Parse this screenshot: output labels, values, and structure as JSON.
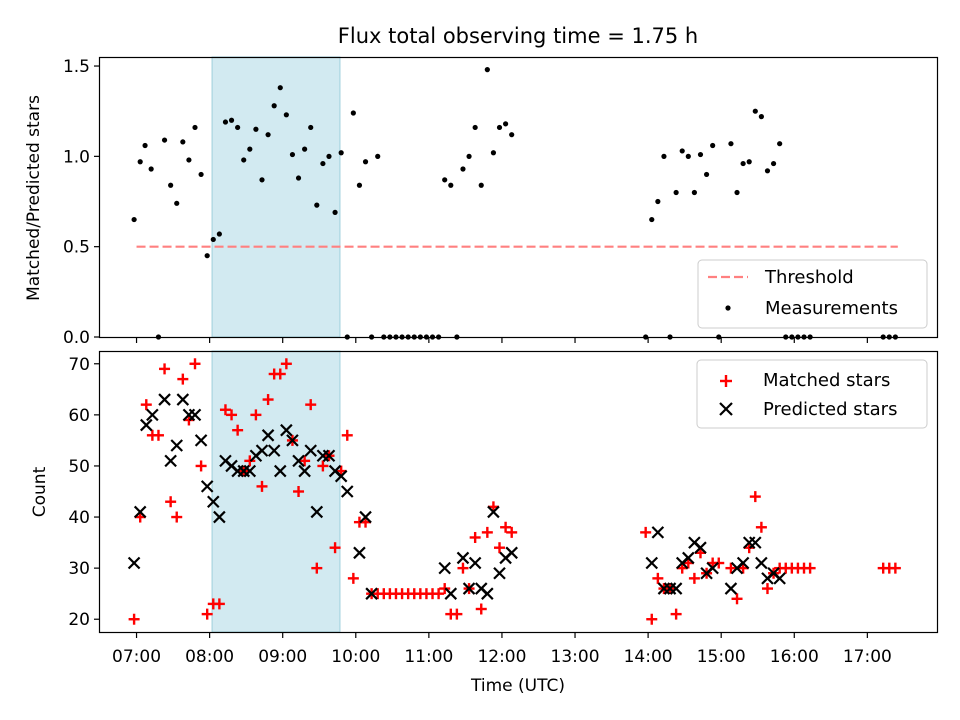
{
  "chart_data": [
    {
      "type": "scatter",
      "title": "Flux total observing time = 1.75 h",
      "ylabel": "Matched/Predicted stars",
      "xlim": [
        "06:30",
        "17:58"
      ],
      "ylim": [
        0,
        1.55
      ],
      "yticks": [
        0.0,
        0.5,
        1.0,
        1.5
      ],
      "ytick_labels": [
        "0.0",
        "0.5",
        "1.0",
        "1.5"
      ],
      "shaded_span": [
        "08:02",
        "09:47"
      ],
      "threshold": {
        "name": "Threshold",
        "value": 0.5,
        "x_start": "07:00",
        "x_end": "17:25"
      },
      "legend": {
        "position": "lower-right",
        "entries": [
          "Threshold",
          "Measurements"
        ]
      },
      "series": [
        {
          "name": "Measurements",
          "points": [
            [
              "06:58",
              0.65
            ],
            [
              "07:03",
              0.97
            ],
            [
              "07:07",
              1.06
            ],
            [
              "07:12",
              0.93
            ],
            [
              "07:18",
              0
            ],
            [
              "07:23",
              1.09
            ],
            [
              "07:28",
              0.84
            ],
            [
              "07:33",
              0.74
            ],
            [
              "07:38",
              1.08
            ],
            [
              "07:43",
              0.98
            ],
            [
              "07:48",
              1.16
            ],
            [
              "07:53",
              0.9
            ],
            [
              "07:58",
              0.45
            ],
            [
              "08:03",
              0.54
            ],
            [
              "08:08",
              0.57
            ],
            [
              "08:13",
              1.19
            ],
            [
              "08:18",
              1.2
            ],
            [
              "08:23",
              1.16
            ],
            [
              "08:28",
              0.98
            ],
            [
              "08:33",
              1.04
            ],
            [
              "08:38",
              1.15
            ],
            [
              "08:43",
              0.87
            ],
            [
              "08:48",
              1.12
            ],
            [
              "08:53",
              1.28
            ],
            [
              "08:58",
              1.38
            ],
            [
              "09:03",
              1.23
            ],
            [
              "09:08",
              1.01
            ],
            [
              "09:13",
              0.88
            ],
            [
              "09:18",
              1.04
            ],
            [
              "09:23",
              1.16
            ],
            [
              "09:28",
              0.73
            ],
            [
              "09:33",
              0.96
            ],
            [
              "09:38",
              1.0
            ],
            [
              "09:43",
              0.69
            ],
            [
              "09:48",
              1.02
            ],
            [
              "09:53",
              0
            ],
            [
              "09:58",
              1.24
            ],
            [
              "10:03",
              0.84
            ],
            [
              "10:08",
              0.97
            ],
            [
              "10:13",
              0
            ],
            [
              "10:18",
              1.0
            ],
            [
              "10:23",
              0
            ],
            [
              "10:28",
              0
            ],
            [
              "10:33",
              0
            ],
            [
              "10:38",
              0
            ],
            [
              "10:43",
              0
            ],
            [
              "10:48",
              0
            ],
            [
              "10:53",
              0
            ],
            [
              "10:58",
              0
            ],
            [
              "11:03",
              0
            ],
            [
              "11:08",
              0
            ],
            [
              "11:13",
              0.87
            ],
            [
              "11:18",
              0.84
            ],
            [
              "11:23",
              0
            ],
            [
              "11:28",
              0.93
            ],
            [
              "11:33",
              1.0
            ],
            [
              "11:38",
              1.16
            ],
            [
              "11:43",
              0.84
            ],
            [
              "11:48",
              1.48
            ],
            [
              "11:53",
              1.02
            ],
            [
              "11:58",
              1.16
            ],
            [
              "12:03",
              1.18
            ],
            [
              "12:08",
              1.12
            ],
            [
              "13:58",
              0
            ],
            [
              "14:03",
              0.65
            ],
            [
              "14:08",
              0.75
            ],
            [
              "14:13",
              1.0
            ],
            [
              "14:18",
              0
            ],
            [
              "14:23",
              0.8
            ],
            [
              "14:28",
              1.03
            ],
            [
              "14:33",
              1.0
            ],
            [
              "14:38",
              0.8
            ],
            [
              "14:43",
              1.01
            ],
            [
              "14:48",
              0.9
            ],
            [
              "14:53",
              1.06
            ],
            [
              "14:58",
              0
            ],
            [
              "15:08",
              1.07
            ],
            [
              "15:13",
              0.8
            ],
            [
              "15:18",
              0.96
            ],
            [
              "15:23",
              0.97
            ],
            [
              "15:28",
              1.25
            ],
            [
              "15:33",
              1.22
            ],
            [
              "15:38",
              0.92
            ],
            [
              "15:43",
              0.96
            ],
            [
              "15:48",
              1.07
            ],
            [
              "15:53",
              0
            ],
            [
              "15:58",
              0
            ],
            [
              "16:03",
              0
            ],
            [
              "16:08",
              0
            ],
            [
              "16:13",
              0
            ],
            [
              "17:13",
              0
            ],
            [
              "17:18",
              0
            ],
            [
              "17:23",
              0
            ]
          ]
        }
      ]
    },
    {
      "type": "scatter",
      "xlabel": "Time (UTC)",
      "ylabel": "Count",
      "xlim": [
        "06:30",
        "17:58"
      ],
      "ylim": [
        17.5,
        72.5
      ],
      "xticks": [
        "07:00",
        "08:00",
        "09:00",
        "10:00",
        "11:00",
        "12:00",
        "13:00",
        "14:00",
        "15:00",
        "16:00",
        "17:00"
      ],
      "yticks": [
        20,
        30,
        40,
        50,
        60,
        70
      ],
      "ytick_labels": [
        "20",
        "30",
        "40",
        "50",
        "60",
        "70"
      ],
      "shaded_span": [
        "08:02",
        "09:47"
      ],
      "legend": {
        "position": "top-right",
        "entries": [
          "Matched stars",
          "Predicted stars"
        ]
      },
      "series": [
        {
          "name": "Matched stars",
          "color": "#ff0000",
          "points": [
            [
              "06:58",
              20
            ],
            [
              "07:03",
              40
            ],
            [
              "07:08",
              62
            ],
            [
              "07:13",
              56
            ],
            [
              "07:18",
              56
            ],
            [
              "07:23",
              69
            ],
            [
              "07:28",
              43
            ],
            [
              "07:33",
              40
            ],
            [
              "07:38",
              67
            ],
            [
              "07:43",
              59
            ],
            [
              "07:48",
              70
            ],
            [
              "07:53",
              50
            ],
            [
              "07:58",
              21
            ],
            [
              "08:03",
              23
            ],
            [
              "08:08",
              23
            ],
            [
              "08:13",
              61
            ],
            [
              "08:18",
              60
            ],
            [
              "08:23",
              57
            ],
            [
              "08:28",
              49
            ],
            [
              "08:33",
              51
            ],
            [
              "08:38",
              60
            ],
            [
              "08:43",
              46
            ],
            [
              "08:48",
              63
            ],
            [
              "08:53",
              68
            ],
            [
              "08:58",
              68
            ],
            [
              "09:03",
              70
            ],
            [
              "09:08",
              55
            ],
            [
              "09:13",
              45
            ],
            [
              "09:18",
              51
            ],
            [
              "09:23",
              62
            ],
            [
              "09:28",
              30
            ],
            [
              "09:33",
              50
            ],
            [
              "09:38",
              52
            ],
            [
              "09:43",
              34
            ],
            [
              "09:48",
              49
            ],
            [
              "09:53",
              56
            ],
            [
              "09:58",
              28
            ],
            [
              "10:03",
              39
            ],
            [
              "10:08",
              39
            ],
            [
              "10:13",
              25
            ],
            [
              "10:18",
              25
            ],
            [
              "10:23",
              25
            ],
            [
              "10:28",
              25
            ],
            [
              "10:33",
              25
            ],
            [
              "10:38",
              25
            ],
            [
              "10:43",
              25
            ],
            [
              "10:48",
              25
            ],
            [
              "10:53",
              25
            ],
            [
              "10:58",
              25
            ],
            [
              "11:03",
              25
            ],
            [
              "11:08",
              25
            ],
            [
              "11:13",
              26
            ],
            [
              "11:18",
              21
            ],
            [
              "11:23",
              21
            ],
            [
              "11:28",
              30
            ],
            [
              "11:33",
              26
            ],
            [
              "11:38",
              36
            ],
            [
              "11:43",
              22
            ],
            [
              "11:48",
              37
            ],
            [
              "11:53",
              42
            ],
            [
              "11:58",
              34
            ],
            [
              "12:03",
              38
            ],
            [
              "12:08",
              37
            ],
            [
              "13:58",
              37
            ],
            [
              "14:03",
              20
            ],
            [
              "14:08",
              28
            ],
            [
              "14:13",
              26
            ],
            [
              "14:18",
              26
            ],
            [
              "14:23",
              21
            ],
            [
              "14:28",
              30
            ],
            [
              "14:33",
              31
            ],
            [
              "14:38",
              28
            ],
            [
              "14:43",
              33
            ],
            [
              "14:48",
              29
            ],
            [
              "14:53",
              31
            ],
            [
              "14:58",
              31
            ],
            [
              "15:08",
              30
            ],
            [
              "15:13",
              24
            ],
            [
              "15:18",
              30
            ],
            [
              "15:23",
              34
            ],
            [
              "15:28",
              44
            ],
            [
              "15:33",
              38
            ],
            [
              "15:38",
              26
            ],
            [
              "15:43",
              29
            ],
            [
              "15:48",
              30
            ],
            [
              "15:53",
              30
            ],
            [
              "15:58",
              30
            ],
            [
              "16:03",
              30
            ],
            [
              "16:08",
              30
            ],
            [
              "16:13",
              30
            ],
            [
              "17:13",
              30
            ],
            [
              "17:18",
              30
            ],
            [
              "17:23",
              30
            ]
          ]
        },
        {
          "name": "Predicted stars",
          "color": "#000000",
          "points": [
            [
              "06:58",
              31
            ],
            [
              "07:03",
              41
            ],
            [
              "07:08",
              58
            ],
            [
              "07:13",
              60
            ],
            [
              "07:23",
              63
            ],
            [
              "07:28",
              51
            ],
            [
              "07:33",
              54
            ],
            [
              "07:38",
              63
            ],
            [
              "07:43",
              60
            ],
            [
              "07:48",
              60
            ],
            [
              "07:53",
              55
            ],
            [
              "07:58",
              46
            ],
            [
              "08:03",
              43
            ],
            [
              "08:08",
              40
            ],
            [
              "08:13",
              51
            ],
            [
              "08:18",
              50
            ],
            [
              "08:23",
              49
            ],
            [
              "08:28",
              49
            ],
            [
              "08:33",
              49
            ],
            [
              "08:38",
              52
            ],
            [
              "08:43",
              53
            ],
            [
              "08:48",
              56
            ],
            [
              "08:53",
              53
            ],
            [
              "08:58",
              49
            ],
            [
              "09:03",
              57
            ],
            [
              "09:08",
              55
            ],
            [
              "09:13",
              51
            ],
            [
              "09:18",
              49
            ],
            [
              "09:23",
              53
            ],
            [
              "09:28",
              41
            ],
            [
              "09:33",
              52
            ],
            [
              "09:38",
              52
            ],
            [
              "09:43",
              49
            ],
            [
              "09:48",
              48
            ],
            [
              "09:53",
              45
            ],
            [
              "10:03",
              33
            ],
            [
              "10:08",
              40
            ],
            [
              "10:13",
              25
            ],
            [
              "11:13",
              30
            ],
            [
              "11:18",
              25
            ],
            [
              "11:28",
              32
            ],
            [
              "11:33",
              26
            ],
            [
              "11:38",
              31
            ],
            [
              "11:43",
              26
            ],
            [
              "11:48",
              25
            ],
            [
              "11:53",
              41
            ],
            [
              "11:58",
              29
            ],
            [
              "12:03",
              32
            ],
            [
              "12:08",
              33
            ],
            [
              "14:03",
              31
            ],
            [
              "14:08",
              37
            ],
            [
              "14:13",
              26
            ],
            [
              "14:18",
              26
            ],
            [
              "14:23",
              26
            ],
            [
              "14:28",
              31
            ],
            [
              "14:33",
              32
            ],
            [
              "14:38",
              35
            ],
            [
              "14:43",
              34
            ],
            [
              "14:48",
              29
            ],
            [
              "14:53",
              30
            ],
            [
              "15:08",
              26
            ],
            [
              "15:13",
              30
            ],
            [
              "15:18",
              31
            ],
            [
              "15:23",
              35
            ],
            [
              "15:28",
              35
            ],
            [
              "15:33",
              31
            ],
            [
              "15:38",
              28
            ],
            [
              "15:43",
              29
            ],
            [
              "15:48",
              28
            ]
          ]
        }
      ]
    }
  ]
}
